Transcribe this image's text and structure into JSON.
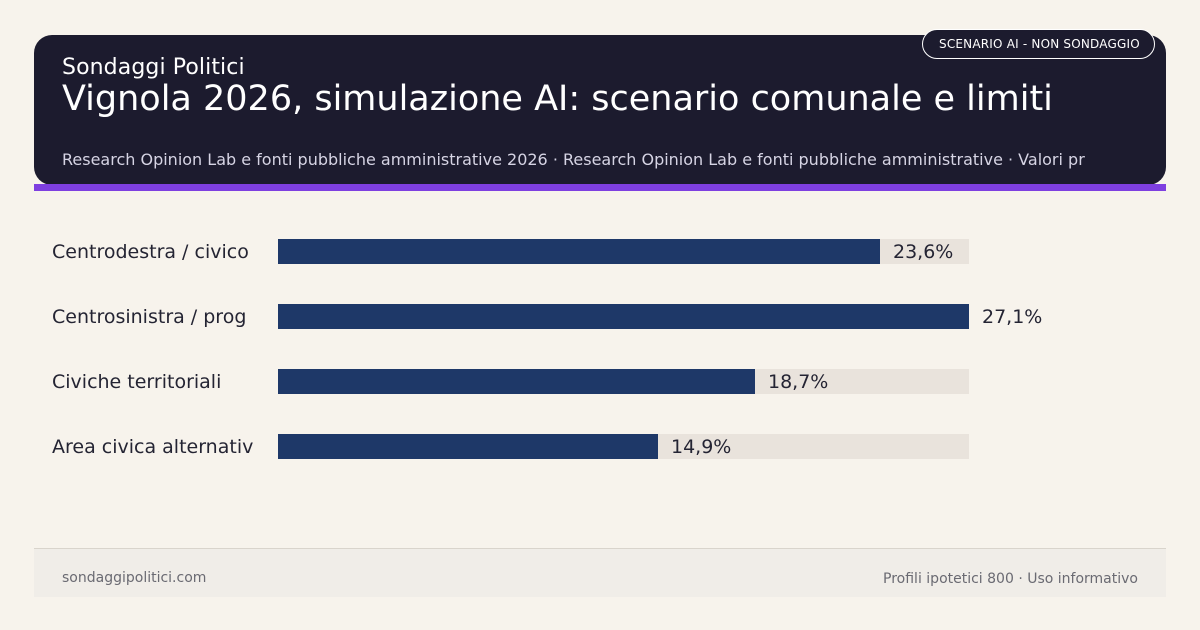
{
  "header": {
    "brand": "Sondaggi Politici",
    "title": "Vignola 2026, simulazione AI: scenario comunale e limiti",
    "subtitle": "Research Opinion Lab e fonti pubbliche amministrative 2026 · Research Opinion Lab e fonti pubbliche amministrative · Valori pr",
    "badge": "SCENARIO AI - NON SONDAGGIO"
  },
  "colors": {
    "header_bg": "#1c1b2e",
    "accent": "#7e3fe0",
    "bar": "#1e3868",
    "track": "#e9e3dc",
    "background": "#f7f3ec"
  },
  "chart_data": {
    "type": "bar",
    "orientation": "horizontal",
    "categories": [
      "Centrodestra / civico",
      "Centrosinistra / prog",
      "Civiche territoriali",
      "Area civica alternativ"
    ],
    "values": [
      23.6,
      27.1,
      18.7,
      14.9
    ],
    "value_labels": [
      "23,6%",
      "27,1%",
      "18,7%",
      "14,9%"
    ],
    "xlim": [
      0,
      27.1
    ],
    "title": "",
    "xlabel": "",
    "ylabel": "",
    "grid": false,
    "legend": "none"
  },
  "footer": {
    "left": "sondaggipolitici.com",
    "right": "Profili ipotetici 800 · Uso informativo"
  }
}
